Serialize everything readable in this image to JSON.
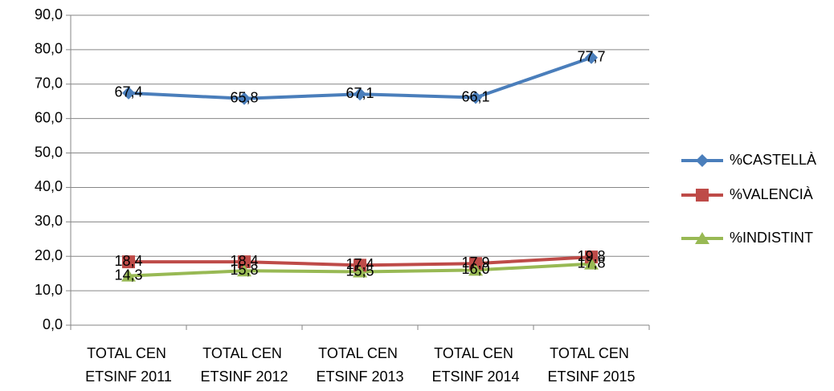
{
  "chart_data": {
    "type": "line",
    "categories": [
      "TOTAL CEN ETSINF 2011",
      "TOTAL CEN ETSINF 2012",
      "TOTAL CEN ETSINF 2013",
      "TOTAL CEN ETSINF 2014",
      "TOTAL CEN ETSINF 2015"
    ],
    "series": [
      {
        "name": "%CASTELLÀ",
        "color": "#4a7ebb",
        "marker": "diamond",
        "values": [
          67.4,
          65.8,
          67.1,
          66.1,
          77.7
        ],
        "value_labels": [
          "67,4",
          "65,8",
          "67,1",
          "66,1",
          "77,7"
        ]
      },
      {
        "name": "%VALENCIÀ",
        "color": "#be4b48",
        "marker": "square",
        "values": [
          18.4,
          18.4,
          17.4,
          17.9,
          19.8
        ],
        "value_labels": [
          "18,4",
          "18,4",
          "17,4",
          "17,9",
          "19,8"
        ]
      },
      {
        "name": "%INDISTINT",
        "color": "#98b954",
        "marker": "triangle",
        "values": [
          14.3,
          15.8,
          15.5,
          16.0,
          17.8
        ],
        "value_labels": [
          "14,3",
          "15,8",
          "15,5",
          "16,0",
          "17,8"
        ]
      }
    ],
    "ylim": [
      0,
      90
    ],
    "yticks": [
      {
        "value": 0,
        "label": "0,0"
      },
      {
        "value": 10,
        "label": "10,0"
      },
      {
        "value": 20,
        "label": "20,0"
      },
      {
        "value": 30,
        "label": "30,0"
      },
      {
        "value": 40,
        "label": "40,0"
      },
      {
        "value": 50,
        "label": "50,0"
      },
      {
        "value": 60,
        "label": "60,0"
      },
      {
        "value": 70,
        "label": "70,0"
      },
      {
        "value": 80,
        "label": "80,0"
      },
      {
        "value": 90,
        "label": "90,0"
      }
    ],
    "grid": true,
    "legend": "right"
  }
}
